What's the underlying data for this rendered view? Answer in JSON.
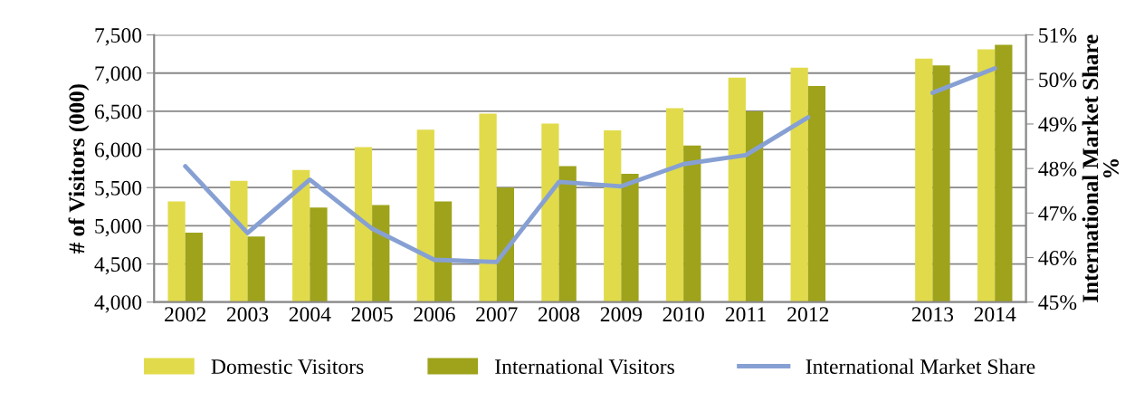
{
  "chart_data": {
    "type": "bar",
    "categories": [
      "2002",
      "2003",
      "2004",
      "2005",
      "2006",
      "2007",
      "2008",
      "2009",
      "2010",
      "2011",
      "2012",
      null,
      "2013",
      "2014"
    ],
    "series": [
      {
        "name": "Domestic Visitors",
        "color": "#e1db4b",
        "values": [
          5320,
          5590,
          5730,
          6030,
          6260,
          6470,
          6340,
          6250,
          6540,
          6940,
          7070,
          null,
          7190,
          7310
        ]
      },
      {
        "name": "International Visitors",
        "color": "#9ea31b",
        "values": [
          4910,
          4860,
          5240,
          5270,
          5320,
          5500,
          5780,
          5680,
          6050,
          6500,
          6830,
          null,
          7100,
          7370
        ]
      },
      {
        "name": "International Market Share",
        "type": "line",
        "axis": "y2",
        "color": "#87a0d3",
        "values": [
          48.05,
          46.55,
          47.75,
          46.65,
          45.95,
          45.9,
          47.7,
          47.6,
          48.1,
          48.3,
          49.15,
          null,
          49.7,
          50.25
        ]
      }
    ],
    "ylabel": "# of Visitors (000)",
    "y2label": "International Market Share\n%",
    "ylim": [
      4000,
      7500
    ],
    "yticks": [
      {
        "value": 4000,
        "label": "4,000"
      },
      {
        "value": 4500,
        "label": "4,500"
      },
      {
        "value": 5000,
        "label": "5,000"
      },
      {
        "value": 5500,
        "label": "5,500"
      },
      {
        "value": 6000,
        "label": "6,000"
      },
      {
        "value": 6500,
        "label": "6,500"
      },
      {
        "value": 7000,
        "label": "7,000"
      },
      {
        "value": 7500,
        "label": "7,500"
      }
    ],
    "y2lim": [
      45,
      51
    ],
    "y2ticks": [
      {
        "value": 45,
        "label": "45%"
      },
      {
        "value": 46,
        "label": "46%"
      },
      {
        "value": 47,
        "label": "47%"
      },
      {
        "value": 48,
        "label": "48%"
      },
      {
        "value": 49,
        "label": "49%"
      },
      {
        "value": 50,
        "label": "50%"
      },
      {
        "value": 51,
        "label": "51%"
      }
    ],
    "grid": "y",
    "legend": "bottom",
    "marker": "none",
    "line_style": "solid"
  }
}
